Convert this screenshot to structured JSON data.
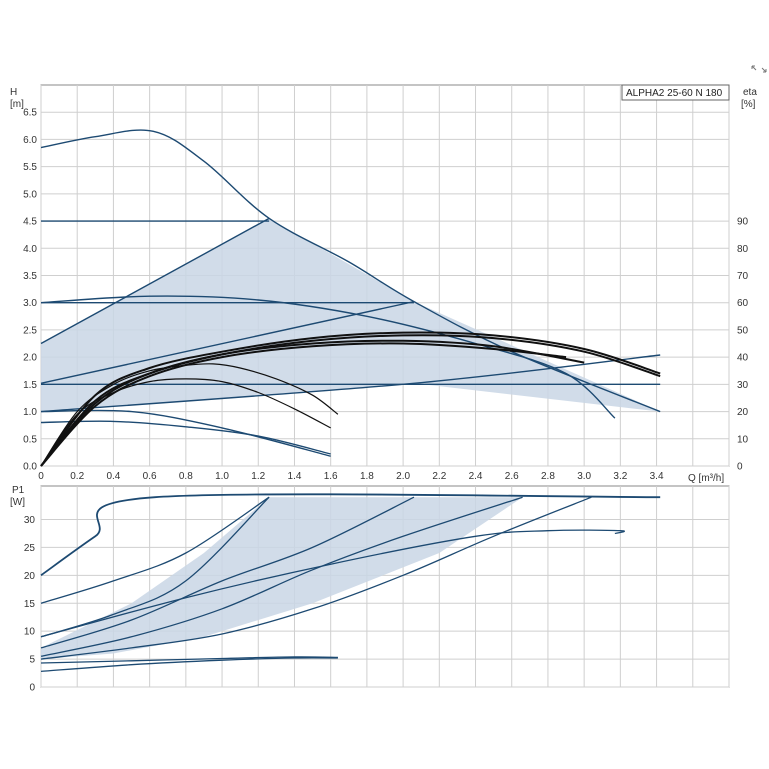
{
  "chart_data": [
    {
      "type": "line",
      "title": "ALPHA2 25-60 N 180",
      "ylabel_top": "H",
      "ylabel_unit": "[m]",
      "y2label_top": "eta",
      "y2label_unit": "[%]",
      "xlabel": "Q [m³/h]",
      "xlim": [
        0,
        3.8
      ],
      "ylim": [
        0,
        7.0
      ],
      "y2lim": [
        0,
        140
      ],
      "x_ticks": [
        "0",
        "0.2",
        "0.4",
        "0.6",
        "0.8",
        "1.0",
        "1.2",
        "1.4",
        "1.6",
        "1.8",
        "2.0",
        "2.2",
        "2.4",
        "2.6",
        "2.8",
        "3.0",
        "3.2",
        "3.4"
      ],
      "y_ticks": [
        "0.0",
        "0.5",
        "1.0",
        "1.5",
        "2.0",
        "2.5",
        "3.0",
        "3.5",
        "4.0",
        "4.5",
        "5.0",
        "5.5",
        "6.0",
        "6.5"
      ],
      "y2_ticks": [
        "0",
        "10",
        "20",
        "30",
        "40",
        "50",
        "60",
        "70",
        "80",
        "90"
      ],
      "grid": true,
      "shaded_region": [
        [
          0,
          1.0
        ],
        [
          0,
          2.25
        ],
        [
          1.26,
          4.55
        ],
        [
          2.06,
          3.02
        ],
        [
          3.42,
          1.0
        ],
        [
          2.06,
          1.52
        ],
        [
          0,
          1.0
        ]
      ],
      "series": [
        {
          "kind": "head",
          "points": [
            [
              0,
              5.85
            ],
            [
              0.3,
              6.05
            ],
            [
              0.62,
              6.15
            ],
            [
              0.9,
              5.6
            ],
            [
              1.26,
              4.55
            ],
            [
              1.7,
              3.75
            ],
            [
              2.06,
              3.02
            ],
            [
              2.6,
              2.1
            ],
            [
              3.42,
              1.0
            ]
          ]
        },
        {
          "kind": "head",
          "points": [
            [
              0,
              4.5
            ],
            [
              1.26,
              4.5
            ]
          ]
        },
        {
          "kind": "head",
          "points": [
            [
              0,
              3.0
            ],
            [
              2.06,
              3.0
            ]
          ]
        },
        {
          "kind": "head",
          "points": [
            [
              0,
              1.5
            ],
            [
              3.42,
              1.5
            ]
          ]
        },
        {
          "kind": "head",
          "points": [
            [
              0,
              2.25
            ],
            [
              1.26,
              4.55
            ]
          ]
        },
        {
          "kind": "head",
          "points": [
            [
              0,
              1.52
            ],
            [
              2.06,
              3.02
            ]
          ]
        },
        {
          "kind": "head",
          "points": [
            [
              0,
              1.0
            ],
            [
              2.06,
              1.52
            ],
            [
              3.42,
              2.04
            ]
          ]
        },
        {
          "kind": "head",
          "points": [
            [
              0,
              3.0
            ],
            [
              0.6,
              3.12
            ],
            [
              1.2,
              3.05
            ],
            [
              1.8,
              2.75
            ],
            [
              2.4,
              2.25
            ],
            [
              2.9,
              1.7
            ],
            [
              3.17,
              0.88
            ]
          ]
        },
        {
          "kind": "head",
          "points": [
            [
              0,
              0.8
            ],
            [
              0.4,
              0.82
            ],
            [
              0.8,
              0.72
            ],
            [
              1.2,
              0.55
            ],
            [
              1.6,
              0.22
            ]
          ]
        },
        {
          "kind": "head",
          "points": [
            [
              0,
              1.0
            ],
            [
              0.5,
              1.0
            ],
            [
              1.0,
              0.7
            ],
            [
              1.6,
              0.18
            ]
          ]
        },
        {
          "kind": "eta",
          "points": [
            [
              0,
              0
            ],
            [
              0.2,
              20
            ],
            [
              0.4,
              30
            ],
            [
              0.6,
              35
            ],
            [
              0.8,
              37
            ],
            [
              0.95,
              37.5
            ],
            [
              1.1,
              36
            ],
            [
              1.3,
              32
            ],
            [
              1.5,
              26
            ],
            [
              1.64,
              19
            ]
          ]
        },
        {
          "kind": "eta",
          "points": [
            [
              0,
              0
            ],
            [
              0.2,
              19
            ],
            [
              0.4,
              27
            ],
            [
              0.6,
              31
            ],
            [
              0.8,
              32
            ],
            [
              1.0,
              31
            ],
            [
              1.2,
              27
            ],
            [
              1.4,
              21
            ],
            [
              1.6,
              14
            ]
          ]
        },
        {
          "kind": "eta",
          "points": [
            [
              0,
              0
            ],
            [
              0.3,
              26
            ],
            [
              0.6,
              36
            ],
            [
              1.0,
              42
            ],
            [
              1.5,
              47
            ],
            [
              2.0,
              49
            ],
            [
              2.5,
              48
            ],
            [
              3.0,
              43
            ],
            [
              3.42,
              34
            ]
          ]
        },
        {
          "kind": "eta",
          "points": [
            [
              0,
              0
            ],
            [
              0.3,
              24
            ],
            [
              0.6,
              34
            ],
            [
              1.0,
              41
            ],
            [
              1.5,
              46
            ],
            [
              2.0,
              48
            ],
            [
              2.5,
              47
            ],
            [
              3.0,
              42
            ],
            [
              3.42,
              33
            ]
          ]
        },
        {
          "kind": "eta",
          "points": [
            [
              0,
              0
            ],
            [
              0.3,
              22
            ],
            [
              0.6,
              33
            ],
            [
              1.0,
              40
            ],
            [
              1.5,
              44
            ],
            [
              2.0,
              45
            ],
            [
              2.5,
              43
            ],
            [
              2.9,
              40
            ]
          ]
        },
        {
          "kind": "eta",
          "points": [
            [
              0,
              0
            ],
            [
              0.3,
              23
            ],
            [
              0.6,
              34
            ],
            [
              1.0,
              41
            ],
            [
              1.5,
              45
            ],
            [
              2.0,
              46
            ],
            [
              2.5,
              44
            ],
            [
              3.0,
              38
            ]
          ]
        }
      ]
    },
    {
      "type": "line",
      "ylabel_top": "P1",
      "ylabel_unit": "[W]",
      "xlim": [
        0,
        3.8
      ],
      "ylim": [
        0,
        36
      ],
      "y_ticks": [
        "0",
        "5",
        "10",
        "15",
        "20",
        "25",
        "30"
      ],
      "grid": true,
      "shaded_region": [
        [
          0,
          5.0
        ],
        [
          0,
          7.0
        ],
        [
          0.5,
          15
        ],
        [
          0.9,
          24
        ],
        [
          1.26,
          34
        ],
        [
          2.06,
          34
        ],
        [
          2.66,
          34
        ],
        [
          2.2,
          24
        ],
        [
          1.5,
          15
        ],
        [
          0.9,
          9
        ],
        [
          0.4,
          6
        ],
        [
          0,
          5.0
        ]
      ],
      "series": [
        {
          "kind": "power",
          "points": [
            [
              0,
              20
            ],
            [
              0.3,
              27
            ],
            [
              0.63,
              34
            ],
            [
              3.42,
              34
            ]
          ]
        },
        {
          "kind": "power",
          "points": [
            [
              0,
              15
            ],
            [
              0.4,
              19
            ],
            [
              0.8,
              24
            ],
            [
              1.26,
              34
            ]
          ]
        },
        {
          "kind": "power",
          "points": [
            [
              0,
              9
            ],
            [
              0.4,
              13
            ],
            [
              0.8,
              19
            ],
            [
              1.26,
              34
            ]
          ]
        },
        {
          "kind": "power",
          "points": [
            [
              0,
              7
            ],
            [
              0.5,
              12
            ],
            [
              1.0,
              19
            ],
            [
              1.5,
              25
            ],
            [
              2.06,
              34
            ]
          ]
        },
        {
          "kind": "power",
          "points": [
            [
              0,
              5.5
            ],
            [
              0.5,
              9
            ],
            [
              1.0,
              14
            ],
            [
              1.5,
              21
            ],
            [
              2.0,
              27
            ],
            [
              2.66,
              34
            ]
          ]
        },
        {
          "kind": "power",
          "points": [
            [
              0,
              5
            ],
            [
              0.5,
              7
            ],
            [
              1.0,
              9.5
            ],
            [
              1.5,
              14
            ],
            [
              2.0,
              20
            ],
            [
              2.5,
              27
            ],
            [
              3.04,
              34
            ]
          ]
        },
        {
          "kind": "power",
          "points": [
            [
              0,
              9
            ],
            [
              0.8,
              16
            ],
            [
              1.6,
              22
            ],
            [
              2.4,
              27
            ],
            [
              2.8,
              28
            ],
            [
              3.2,
              28
            ],
            [
              3.17,
              27.5
            ]
          ]
        },
        {
          "kind": "power",
          "points": [
            [
              0,
              4.3
            ],
            [
              0.5,
              4.7
            ],
            [
              1.0,
              5.1
            ],
            [
              1.4,
              5.4
            ],
            [
              1.64,
              5.3
            ]
          ]
        },
        {
          "kind": "power",
          "points": [
            [
              0,
              2.8
            ],
            [
              0.5,
              4.0
            ],
            [
              1.0,
              4.8
            ],
            [
              1.4,
              5.2
            ],
            [
              1.64,
              5.2
            ]
          ]
        }
      ]
    }
  ]
}
